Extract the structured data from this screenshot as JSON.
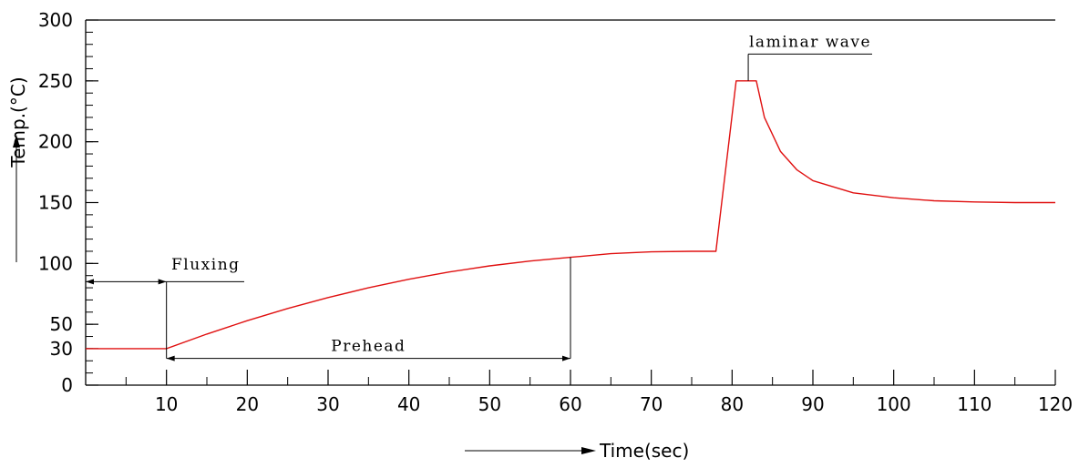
{
  "chart_data": {
    "type": "line",
    "title": "",
    "xlabel": "Time(sec)",
    "ylabel": "Temp.(°C)",
    "xlim": [
      0,
      120
    ],
    "ylim": [
      0,
      300
    ],
    "x_ticks": [
      10,
      20,
      30,
      40,
      50,
      60,
      70,
      80,
      90,
      100,
      110,
      120
    ],
    "y_ticks": [
      0,
      30,
      50,
      100,
      150,
      200,
      250,
      300
    ],
    "grid": false,
    "colors": {
      "line": "#e01010",
      "axes": "#000000"
    },
    "series": [
      {
        "x": [
          0,
          10,
          15,
          20,
          25,
          30,
          35,
          40,
          45,
          50,
          55,
          60,
          65,
          70,
          75,
          78,
          80.5,
          83,
          84,
          86,
          88,
          90,
          95,
          100,
          105,
          110,
          115,
          120
        ],
        "y": [
          30,
          30,
          42,
          53,
          63,
          72,
          80,
          87,
          93,
          98,
          102,
          105,
          108,
          109.5,
          110,
          110,
          250,
          250,
          220,
          192,
          177,
          168,
          158,
          154,
          151.5,
          150.5,
          150,
          150
        ]
      }
    ],
    "annotations": [
      {
        "text": "Fluxing",
        "x_range": [
          0,
          10
        ]
      },
      {
        "text": "Prehead",
        "x_range": [
          10,
          60
        ]
      },
      {
        "text": "laminar wave",
        "x_range": [
          81,
          83
        ]
      }
    ]
  }
}
